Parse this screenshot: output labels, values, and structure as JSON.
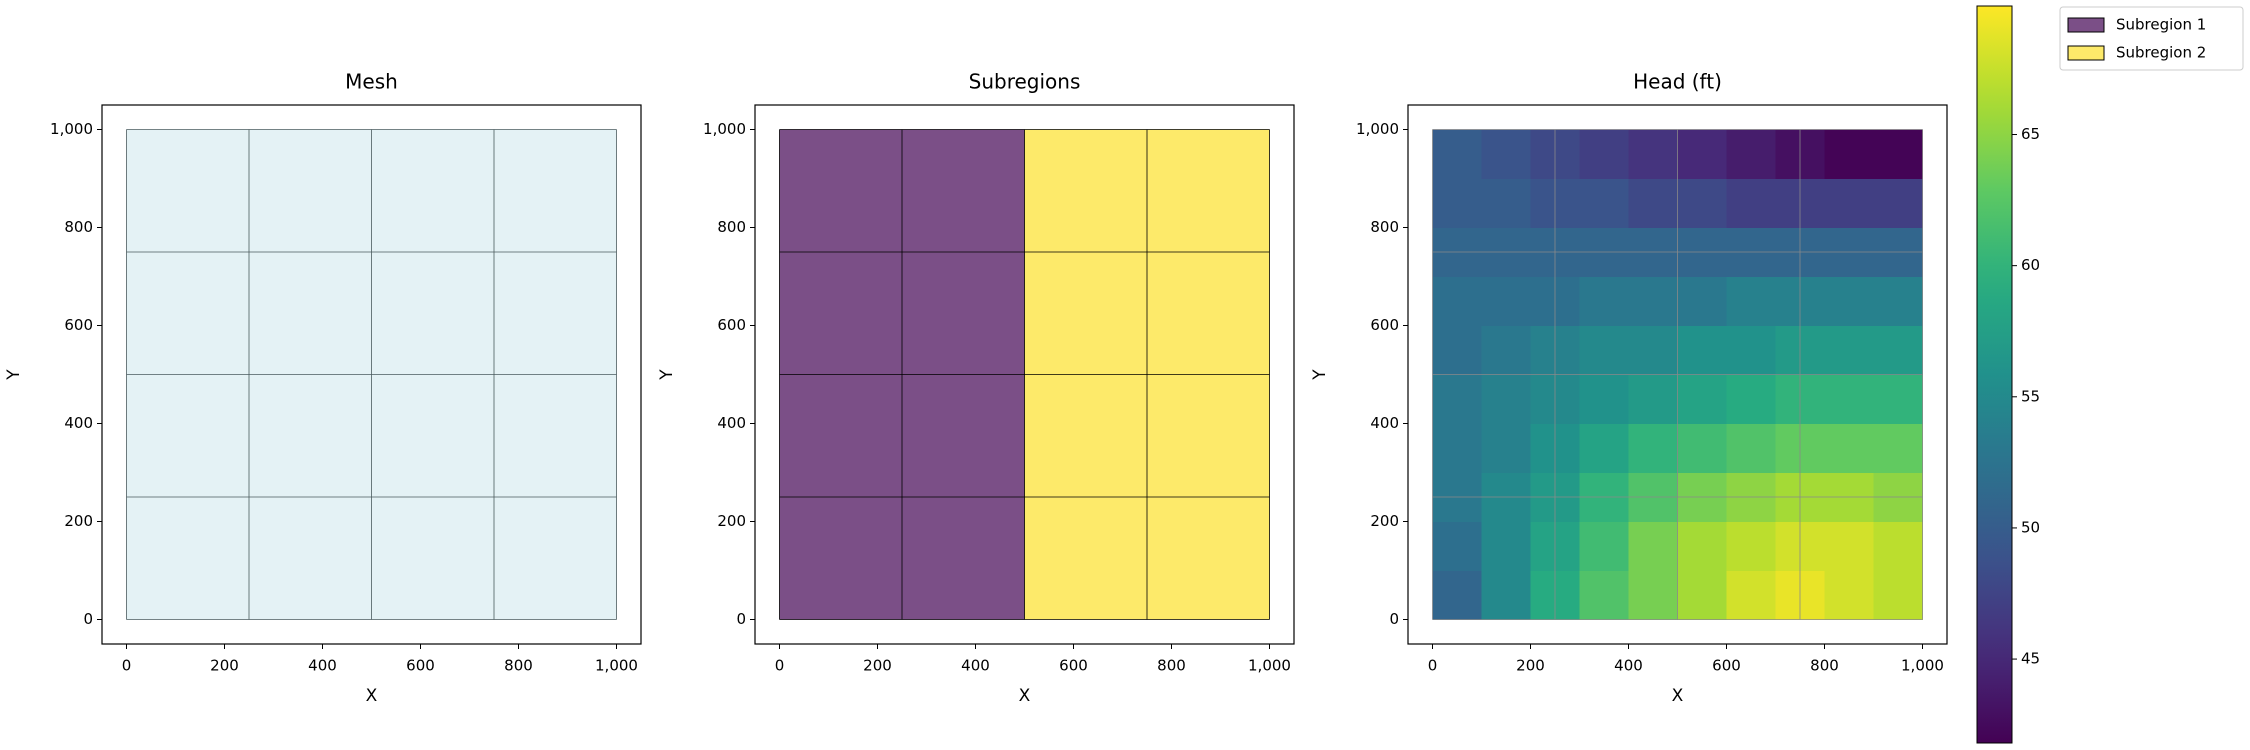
{
  "chart_data": [
    {
      "type": "mesh",
      "title": "Mesh",
      "x_label": "X",
      "y_label": "Y",
      "xlim": [
        -50,
        1050
      ],
      "ylim": [
        -50,
        1050
      ],
      "xticks": [
        0,
        200,
        400,
        600,
        800,
        {
          "value": 1000,
          "label": "1,000"
        }
      ],
      "yticks": [
        0,
        200,
        400,
        600,
        800,
        {
          "value": 1000,
          "label": "1,000"
        }
      ],
      "mesh_x": [
        0,
        250,
        500,
        750,
        1000
      ],
      "mesh_y": [
        0,
        250,
        500,
        750,
        1000
      ],
      "color": "#e4f2f5",
      "mesh_color": "#4a5a5e"
    },
    {
      "type": "region",
      "title": "Subregions",
      "x_label": "X",
      "y_label": "Y",
      "xlim": [
        -50,
        1050
      ],
      "ylim": [
        -50,
        1050
      ],
      "xticks": [
        0,
        200,
        400,
        600,
        800,
        {
          "value": 1000,
          "label": "1,000"
        }
      ],
      "yticks": [
        0,
        200,
        400,
        600,
        800,
        {
          "value": 1000,
          "label": "1,000"
        }
      ],
      "mesh_x": [
        0,
        250,
        500,
        750,
        1000
      ],
      "mesh_y": [
        0,
        250,
        500,
        750,
        1000
      ],
      "mesh_color": "#000000",
      "legend": "outside right",
      "series": [
        {
          "name": "Subregion 1",
          "color": "#7b4f87",
          "x": [
            0,
            500
          ],
          "y": [
            0,
            1000
          ]
        },
        {
          "name": "Subregion 2",
          "color": "#fdea6a",
          "x": [
            500,
            1000
          ],
          "y": [
            0,
            1000
          ]
        }
      ]
    },
    {
      "type": "heatmap",
      "title": "Head (ft)",
      "x_label": "X",
      "y_label": "Y",
      "xlim": [
        -50,
        1050
      ],
      "ylim": [
        -50,
        1050
      ],
      "xticks": [
        0,
        200,
        400,
        600,
        800,
        {
          "value": 1000,
          "label": "1,000"
        }
      ],
      "yticks": [
        0,
        200,
        400,
        600,
        800,
        {
          "value": 1000,
          "label": "1,000"
        }
      ],
      "mesh_x": [
        0,
        250,
        500,
        750,
        1000
      ],
      "mesh_y": [
        0,
        250,
        500,
        750,
        1000
      ],
      "mesh_color": "#8a8a8a",
      "colormap": "viridis",
      "zlim": [
        41.8,
        69.9
      ],
      "zticks": [
        45,
        50,
        55,
        60,
        65
      ],
      "x": [
        50,
        150,
        250,
        350,
        450,
        550,
        650,
        750,
        850,
        950
      ],
      "y": [
        50,
        150,
        250,
        350,
        450,
        550,
        650,
        750,
        850,
        950
      ],
      "z": [
        [
          51,
          55,
          59,
          62,
          64,
          66,
          68,
          69,
          68,
          67
        ],
        [
          52,
          55,
          58,
          61,
          64,
          66,
          67,
          68,
          68,
          67
        ],
        [
          53,
          55,
          57,
          60,
          62,
          64,
          65,
          66,
          66,
          65
        ],
        [
          53,
          54,
          56,
          58,
          60,
          61,
          62,
          63,
          63,
          63
        ],
        [
          53,
          54,
          55,
          56,
          57,
          58,
          59,
          60,
          60,
          60
        ],
        [
          52,
          53,
          54,
          55,
          55,
          56,
          56,
          57,
          57,
          57
        ],
        [
          52,
          52,
          52,
          53,
          53,
          53,
          54,
          54,
          54,
          54
        ],
        [
          51,
          51,
          51,
          51,
          51,
          51,
          51,
          51,
          51,
          51
        ],
        [
          50,
          50,
          49,
          49,
          48,
          48,
          47,
          47,
          47,
          47
        ],
        [
          50,
          49,
          48,
          47,
          46,
          45,
          44,
          43,
          42,
          42
        ]
      ]
    }
  ]
}
